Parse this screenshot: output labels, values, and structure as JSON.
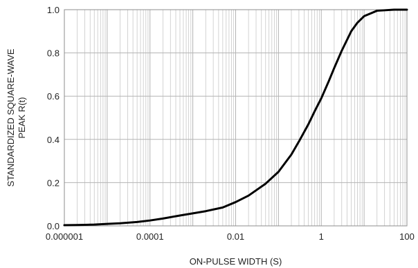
{
  "chart_data": {
    "type": "line",
    "title": "",
    "xlabel": "ON-PULSE WIDTH (S)",
    "ylabel_lines": [
      "STANDARDIZED SQUARE-WAVE",
      "PEAK R(t)"
    ],
    "x_scale": "log",
    "xlim": [
      1e-06,
      100
    ],
    "ylim": [
      0,
      1
    ],
    "x_ticks": [
      {
        "value": 1e-06,
        "label": "0.000001"
      },
      {
        "value": 0.0001,
        "label": "0.0001"
      },
      {
        "value": 0.01,
        "label": "0.01"
      },
      {
        "value": 1,
        "label": "1"
      },
      {
        "value": 100,
        "label": "100"
      }
    ],
    "y_ticks": [
      {
        "value": 0,
        "label": "0.0"
      },
      {
        "value": 0.2,
        "label": "0.2"
      },
      {
        "value": 0.4,
        "label": "0.4"
      },
      {
        "value": 0.6,
        "label": "0.6"
      },
      {
        "value": 0.8,
        "label": "0.8"
      },
      {
        "value": 1,
        "label": "1.0"
      }
    ],
    "grid": true,
    "legend": "none",
    "line_color": "#000000",
    "series": [
      {
        "x": [
          1e-06,
          2e-06,
          5e-06,
          1e-05,
          2e-05,
          5e-05,
          0.0001,
          0.0002,
          0.0005,
          0.001,
          0.002,
          0.005,
          0.01,
          0.02,
          0.05,
          0.1,
          0.2,
          0.3,
          0.5,
          0.7,
          1,
          1.5,
          2,
          3,
          5,
          7,
          10,
          20,
          50,
          100
        ],
        "y": [
          0.003,
          0.004,
          0.006,
          0.009,
          0.012,
          0.018,
          0.025,
          0.034,
          0.048,
          0.058,
          0.068,
          0.085,
          0.11,
          0.14,
          0.195,
          0.25,
          0.33,
          0.39,
          0.47,
          0.53,
          0.59,
          0.67,
          0.73,
          0.81,
          0.9,
          0.94,
          0.97,
          0.995,
          1.0,
          1.0
        ]
      }
    ]
  }
}
